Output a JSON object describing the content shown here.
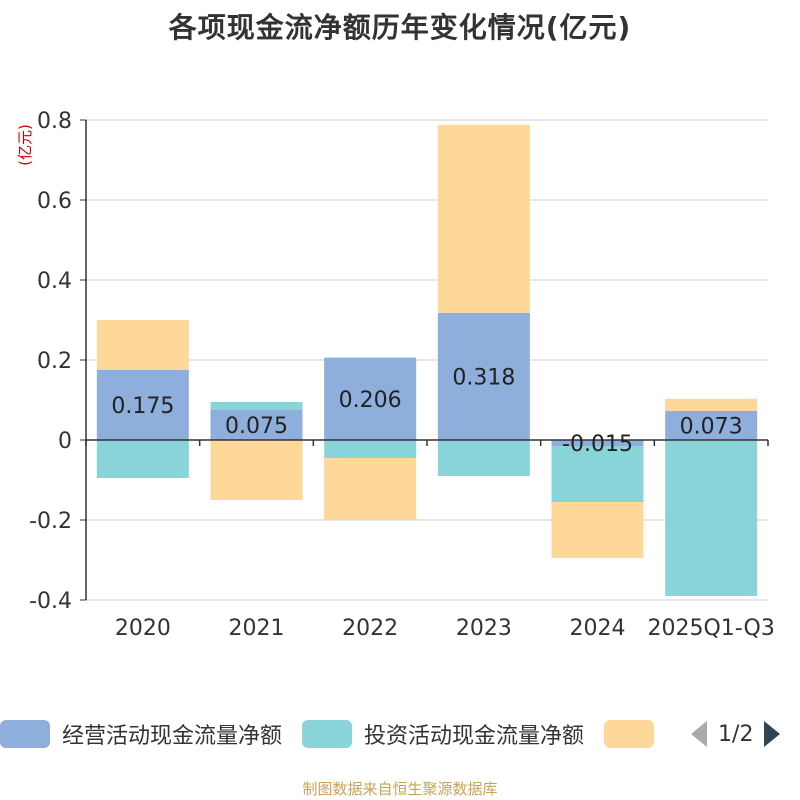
{
  "chart_data": {
    "type": "bar",
    "stacked": true,
    "title": "各项现金流净额历年变化情况(亿元)",
    "ylabel": "(亿元)",
    "ylim": [
      -0.4,
      0.8
    ],
    "yticks": [
      0.8,
      0.6,
      0.4,
      0.2,
      0,
      -0.2,
      -0.4
    ],
    "ytick_labels": [
      "0.8",
      "0.6",
      "0.4",
      "0.2",
      "0",
      "-0.2",
      "-0.4"
    ],
    "categories": [
      "2020",
      "2021",
      "2022",
      "2023",
      "2024",
      "2025Q1-Q3"
    ],
    "series": [
      {
        "name": "经营活动现金流量净额",
        "color": "#8eaedb",
        "values": [
          0.175,
          0.075,
          0.206,
          0.318,
          -0.015,
          0.073
        ],
        "labels": [
          "0.175",
          "0.075",
          "0.206",
          "0.318",
          "-0.015",
          "0.073"
        ]
      },
      {
        "name": "投资活动现金流量净额",
        "color": "#88d4d8",
        "values": [
          -0.095,
          0.02,
          -0.045,
          -0.09,
          -0.14,
          -0.39
        ]
      },
      {
        "name": "",
        "color": "#fed899",
        "values": [
          0.125,
          -0.15,
          -0.155,
          0.47,
          -0.14,
          0.03
        ]
      }
    ],
    "legend_position": "bottom"
  },
  "legend": {
    "items": [
      {
        "label": "经营活动现金流量净额",
        "color": "#8eaedb"
      },
      {
        "label": "投资活动现金流量净额",
        "color": "#88d4d8"
      },
      {
        "label": "",
        "color": "#fed899"
      }
    ],
    "page": "1/2"
  },
  "footer": "制图数据来自恒生聚源数据库"
}
